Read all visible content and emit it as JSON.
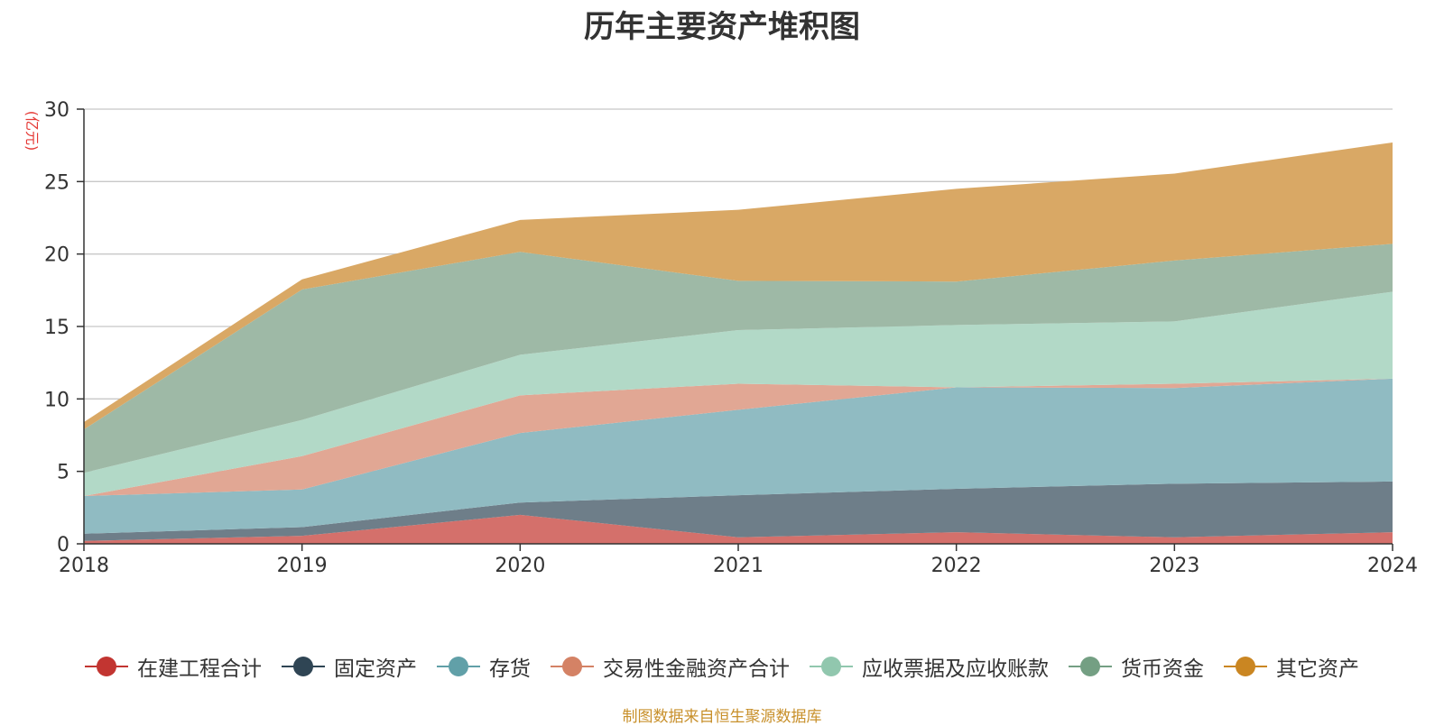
{
  "chart_data": {
    "type": "area",
    "stacked": true,
    "title": "历年主要资产堆积图",
    "ylabel": "(亿元)",
    "xlabel": "",
    "x": [
      "2018",
      "2019",
      "2020",
      "2021",
      "2022",
      "2023",
      "2024"
    ],
    "ylim": [
      0,
      30
    ],
    "yticks": [
      "0",
      "5",
      "10",
      "15",
      "20",
      "25",
      "30"
    ],
    "grid": true,
    "legend_position": "bottom",
    "series": [
      {
        "name": "在建工程合计",
        "color": "#c23531",
        "fill": "#d4706b",
        "values": [
          0.2,
          0.55,
          2.0,
          0.45,
          0.8,
          0.45,
          0.8
        ]
      },
      {
        "name": "固定资产",
        "color": "#2f4554",
        "fill": "#6e7e89",
        "values": [
          0.5,
          0.6,
          0.85,
          2.9,
          3.0,
          3.7,
          3.5
        ]
      },
      {
        "name": "存货",
        "color": "#61a0a8",
        "fill": "#90bbc2",
        "values": [
          2.6,
          2.6,
          4.8,
          5.9,
          7.0,
          6.6,
          7.1
        ]
      },
      {
        "name": "交易性金融资产合计",
        "color": "#d48265",
        "fill": "#e1a794",
        "values": [
          0.0,
          2.3,
          2.6,
          1.8,
          0.0,
          0.3,
          0.0
        ]
      },
      {
        "name": "应收票据及应收账款",
        "color": "#91c7ae",
        "fill": "#b2d9c7",
        "values": [
          1.6,
          2.5,
          2.8,
          3.7,
          4.3,
          4.3,
          6.0
        ]
      },
      {
        "name": "货币资金",
        "color": "#749f83",
        "fill": "#9eb9a6",
        "values": [
          3.0,
          9.0,
          7.1,
          3.4,
          3.0,
          4.2,
          3.3
        ]
      },
      {
        "name": "其它资产",
        "color": "#ca8622",
        "fill": "#d9a865",
        "values": [
          0.5,
          0.7,
          2.2,
          4.9,
          6.4,
          6.0,
          7.0
        ]
      }
    ]
  },
  "footer": {
    "source_note": "制图数据来自恒生聚源数据库"
  }
}
